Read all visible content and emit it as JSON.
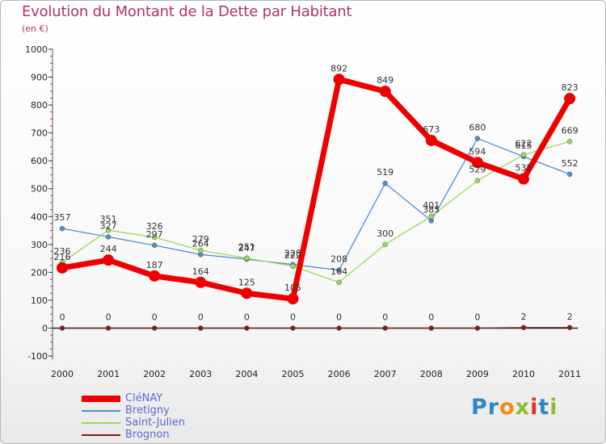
{
  "header": {
    "title": "Evolution du Montant de la Dette par Habitant",
    "subtitle": "(en €)"
  },
  "logo_text": "Proxiti",
  "colors": {
    "title": "#b5306a",
    "legend_text": "#5a6bd6",
    "axis": "#222222",
    "axis_tick": "#c0306a"
  },
  "chart_data": {
    "type": "line",
    "title": "Evolution du Montant de la Dette par Habitant",
    "subtitle": "(en €)",
    "xlabel": "",
    "ylabel": "",
    "categories": [
      "2000",
      "2001",
      "2002",
      "2003",
      "2004",
      "2005",
      "2006",
      "2007",
      "2008",
      "2009",
      "2010",
      "2011"
    ],
    "ylim": [
      -100,
      1000
    ],
    "yticks": [
      -100,
      0,
      100,
      200,
      300,
      400,
      500,
      600,
      700,
      800,
      900,
      1000
    ],
    "grid": false,
    "legend_position": "bottom-left",
    "series": [
      {
        "name": "CléNAY",
        "color": "#ee0000",
        "values": [
          216,
          244,
          187,
          164,
          125,
          105,
          892,
          849,
          673,
          594,
          535,
          823
        ]
      },
      {
        "name": "Bretigny",
        "color": "#4f8ec9",
        "values": [
          357,
          327,
          297,
          264,
          247,
          228,
          208,
          519,
          385,
          680,
          615,
          552
        ]
      },
      {
        "name": "Saint-Julien",
        "color": "#9ada5a",
        "values": [
          236,
          351,
          326,
          279,
          251,
          222,
          164,
          300,
          401,
          529,
          622,
          669
        ]
      },
      {
        "name": "Brognon",
        "color": "#7a1f1f",
        "values": [
          0,
          0,
          0,
          0,
          0,
          0,
          0,
          0,
          0,
          0,
          2,
          2
        ]
      }
    ]
  }
}
